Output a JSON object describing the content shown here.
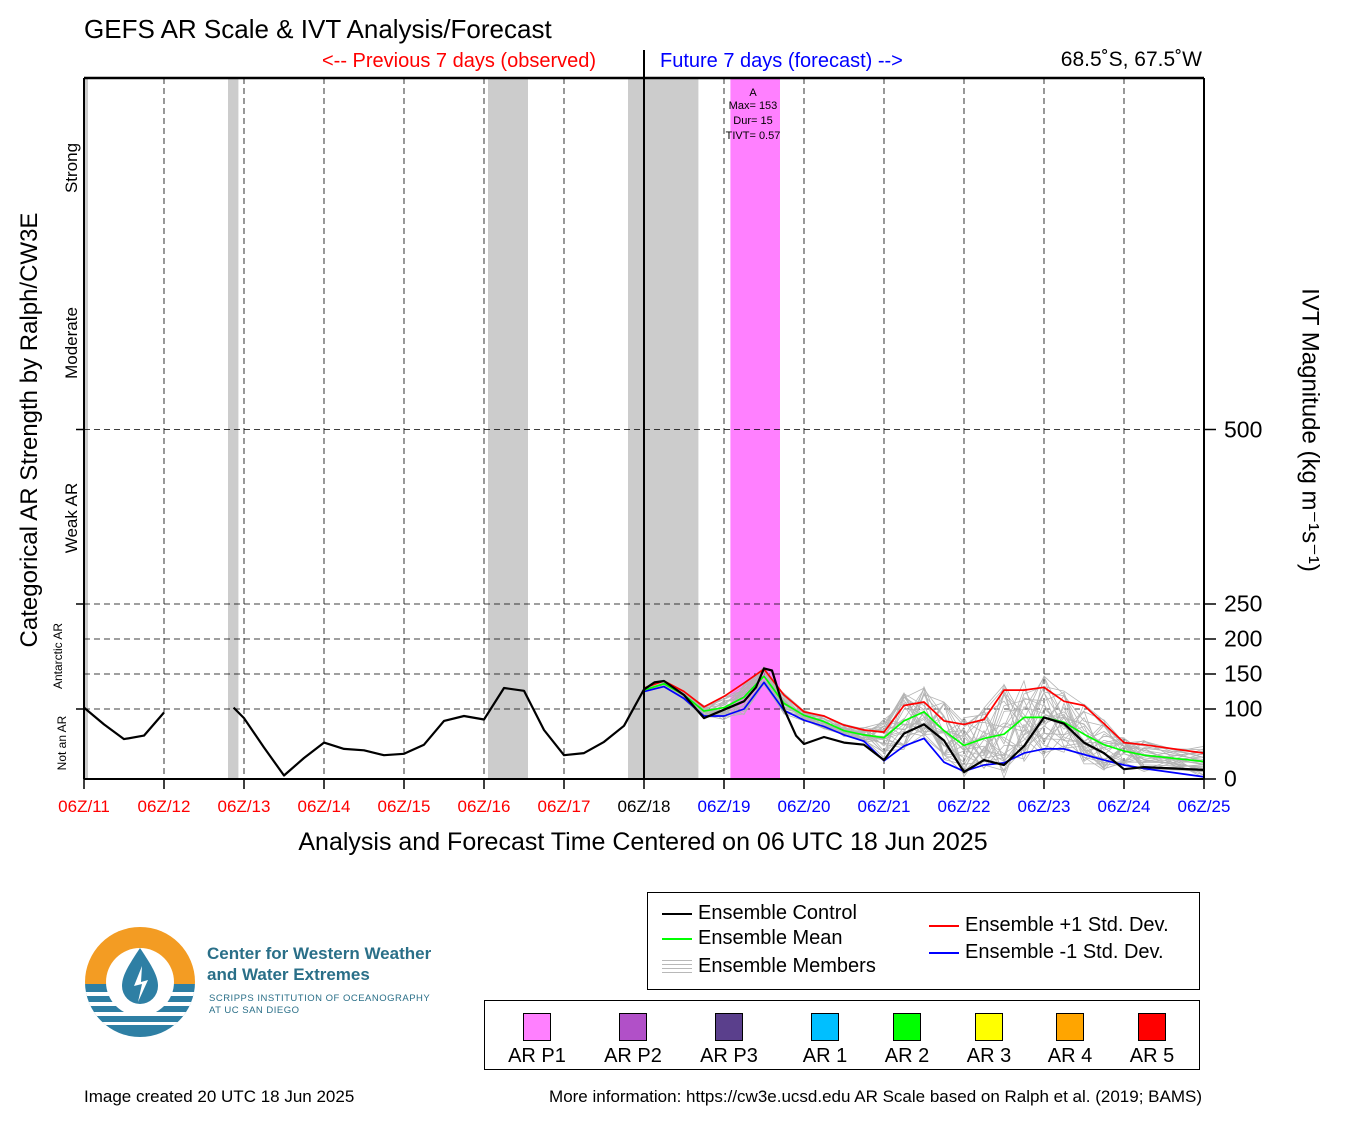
{
  "header": {
    "title": "GEFS AR Scale & IVT Analysis/Forecast",
    "previous_label": "<-- Previous 7 days (observed)",
    "future_label": "Future 7 days (forecast) -->",
    "location": "68.5˚S, 67.5˚W"
  },
  "axes": {
    "x_title": "Analysis and Forecast Time Centered on 06 UTC 18 Jun 2025",
    "left_title": "Categorical AR Strength by Ralph/CW3E",
    "right_title": "IVT Magnitude (kg m⁻¹s⁻¹)",
    "categories": {
      "strong": "Strong",
      "moderate": "Moderate",
      "weak": "Weak AR",
      "antarctic": "Antarctic AR",
      "not_ar": "Not an AR"
    },
    "y_ticks": [
      "0",
      "100",
      "150",
      "200",
      "250",
      "500"
    ],
    "x_ticks": [
      "06Z/11",
      "06Z/12",
      "06Z/13",
      "06Z/14",
      "06Z/15",
      "06Z/16",
      "06Z/17",
      "06Z/18",
      "06Z/19",
      "06Z/20",
      "06Z/21",
      "06Z/22",
      "06Z/23",
      "06Z/24",
      "06Z/25"
    ],
    "x_tick_colors": [
      "#ff0000",
      "#ff0000",
      "#ff0000",
      "#ff0000",
      "#ff0000",
      "#ff0000",
      "#ff0000",
      "#000000",
      "#0000ff",
      "#0000ff",
      "#0000ff",
      "#0000ff",
      "#0000ff",
      "#0000ff",
      "#0000ff"
    ]
  },
  "ar_event": {
    "label": "A",
    "max": "Max= 153",
    "dur": "Dur= 15",
    "tivt": "TIVT= 0.57"
  },
  "legend": {
    "control": "Ensemble Control",
    "mean": "Ensemble Mean",
    "members": "Ensemble Members",
    "plus_sd": "Ensemble +1 Std. Dev.",
    "minus_sd": "Ensemble -1 Std. Dev."
  },
  "ar_categories": [
    {
      "label": "AR P1",
      "color": "#ff80ff"
    },
    {
      "label": "AR P2",
      "color": "#b150c8"
    },
    {
      "label": "AR P3",
      "color": "#5a3f8c"
    },
    {
      "label": "AR 1",
      "color": "#00bfff"
    },
    {
      "label": "AR 2",
      "color": "#00ff00"
    },
    {
      "label": "AR 3",
      "color": "#ffff00"
    },
    {
      "label": "AR 4",
      "color": "#ffa500"
    },
    {
      "label": "AR 5",
      "color": "#ff0000"
    }
  ],
  "org": {
    "name_line1": "Center for Western Weather",
    "name_line2": "and Water Extremes",
    "sub_line1": "SCRIPPS INSTITUTION OF OCEANOGRAPHY",
    "sub_line2": "AT UC SAN DIEGO"
  },
  "footer": {
    "created": "Image created 20 UTC 18 Jun 2025",
    "more_info": "More information: https://cw3e.ucsd.edu AR Scale based on Ralph et al. (2019; BAMS)"
  },
  "chart_data": {
    "type": "line",
    "x_unit": "days since 06Z/11 Jun 2025",
    "y_unit": "kg m-1 s-1",
    "xlim": [
      0,
      14
    ],
    "y_scale": "piecewise (0-150 linear, 150-250 compressed, 250-500 compressed, above 500 category bands)",
    "ylim": [
      0,
      1000
    ],
    "analysis_time_day": 7,
    "gray_periods_days": [
      [
        0,
        0.05
      ],
      [
        1.8,
        1.93
      ],
      [
        5.05,
        5.55
      ],
      [
        6.8,
        7.68
      ]
    ],
    "ar_periods": [
      {
        "label": "A",
        "category": "AR P1",
        "start_day": 8.08,
        "end_day": 8.7,
        "color": "#ff80ff"
      }
    ],
    "series": [
      {
        "name": "Ensemble Control",
        "color": "#000000",
        "segments": [
          [
            [
              0,
              102
            ],
            [
              0.25,
              78
            ],
            [
              0.5,
              57
            ],
            [
              0.75,
              62
            ],
            [
              1,
              95
            ]
          ],
          [
            [
              1.87,
              102
            ],
            [
              2,
              87
            ],
            [
              2.25,
              45
            ],
            [
              2.5,
              5
            ],
            [
              2.75,
              30
            ],
            [
              3,
              52
            ],
            [
              3.25,
              43
            ],
            [
              3.5,
              41
            ],
            [
              3.75,
              34
            ],
            [
              4,
              36
            ],
            [
              4.25,
              49
            ],
            [
              4.5,
              83
            ],
            [
              4.75,
              90
            ],
            [
              5,
              85
            ],
            [
              5.25,
              130
            ],
            [
              5.5,
              126
            ],
            [
              5.75,
              70
            ],
            [
              6,
              34
            ],
            [
              6.25,
              37
            ],
            [
              6.5,
              53
            ],
            [
              6.75,
              76
            ],
            [
              7,
              128
            ],
            [
              7.13,
              138
            ],
            [
              7.25,
              140
            ],
            [
              7.5,
              120
            ],
            [
              7.75,
              87
            ],
            [
              8,
              99
            ],
            [
              8.25,
              111
            ],
            [
              8.4,
              131
            ],
            [
              8.5,
              158
            ],
            [
              8.6,
              155
            ],
            [
              8.75,
              100
            ],
            [
              8.9,
              62
            ],
            [
              9,
              50
            ],
            [
              9.25,
              60
            ],
            [
              9.5,
              52
            ],
            [
              9.75,
              49
            ],
            [
              10,
              27
            ],
            [
              10.25,
              65
            ],
            [
              10.5,
              78
            ],
            [
              10.75,
              55
            ],
            [
              11,
              10
            ],
            [
              11.25,
              27
            ],
            [
              11.5,
              20
            ],
            [
              11.75,
              47
            ],
            [
              12,
              88
            ],
            [
              12.25,
              79
            ],
            [
              12.5,
              52
            ],
            [
              12.75,
              37
            ],
            [
              13,
              14
            ],
            [
              13.25,
              17
            ],
            [
              14,
              13
            ]
          ]
        ]
      },
      {
        "name": "Ensemble Mean",
        "color": "#00ff00",
        "values": [
          [
            7,
            127
          ],
          [
            7.25,
            136
          ],
          [
            7.5,
            120
          ],
          [
            7.75,
            97
          ],
          [
            8,
            102
          ],
          [
            8.25,
            117
          ],
          [
            8.5,
            147
          ],
          [
            8.75,
            108
          ],
          [
            9,
            91
          ],
          [
            9.25,
            82
          ],
          [
            9.5,
            69
          ],
          [
            9.75,
            63
          ],
          [
            10,
            59
          ],
          [
            10.25,
            83
          ],
          [
            10.5,
            96
          ],
          [
            10.75,
            69
          ],
          [
            11,
            48
          ],
          [
            11.25,
            58
          ],
          [
            11.5,
            64
          ],
          [
            11.75,
            88
          ],
          [
            12,
            88
          ],
          [
            12.25,
            81
          ],
          [
            12.5,
            64
          ],
          [
            12.75,
            49
          ],
          [
            13,
            40
          ],
          [
            13.25,
            34
          ],
          [
            14,
            25
          ]
        ]
      },
      {
        "name": "Ensemble +1 Std. Dev.",
        "color": "#ff0000",
        "values": [
          [
            7,
            130
          ],
          [
            7.25,
            140
          ],
          [
            7.5,
            125
          ],
          [
            7.75,
            103
          ],
          [
            8,
            118
          ],
          [
            8.25,
            137
          ],
          [
            8.5,
            157
          ],
          [
            8.75,
            120
          ],
          [
            9,
            96
          ],
          [
            9.25,
            90
          ],
          [
            9.5,
            77
          ],
          [
            9.75,
            70
          ],
          [
            10,
            67
          ],
          [
            10.25,
            105
          ],
          [
            10.5,
            110
          ],
          [
            10.75,
            83
          ],
          [
            11,
            78
          ],
          [
            11.25,
            85
          ],
          [
            11.5,
            127
          ],
          [
            11.75,
            127
          ],
          [
            12,
            131
          ],
          [
            12.25,
            111
          ],
          [
            12.5,
            105
          ],
          [
            12.75,
            79
          ],
          [
            13,
            52
          ],
          [
            13.25,
            49
          ],
          [
            14,
            37
          ]
        ]
      },
      {
        "name": "Ensemble -1 Std. Dev.",
        "color": "#0000ff",
        "values": [
          [
            7,
            125
          ],
          [
            7.25,
            132
          ],
          [
            7.5,
            115
          ],
          [
            7.75,
            90
          ],
          [
            8,
            90
          ],
          [
            8.25,
            100
          ],
          [
            8.5,
            138
          ],
          [
            8.75,
            98
          ],
          [
            9,
            84
          ],
          [
            9.25,
            75
          ],
          [
            9.5,
            63
          ],
          [
            9.75,
            54
          ],
          [
            10,
            26
          ],
          [
            10.25,
            47
          ],
          [
            10.5,
            58
          ],
          [
            10.75,
            24
          ],
          [
            11,
            11
          ],
          [
            11.25,
            20
          ],
          [
            11.5,
            23
          ],
          [
            11.75,
            37
          ],
          [
            12,
            43
          ],
          [
            12.25,
            43
          ],
          [
            12.5,
            35
          ],
          [
            12.75,
            27
          ],
          [
            13,
            20
          ],
          [
            13.25,
            15
          ],
          [
            14,
            3
          ]
        ]
      }
    ],
    "members_note": "Ensemble Members shown as thin gray lines spread around the mean (forecast period only)"
  }
}
